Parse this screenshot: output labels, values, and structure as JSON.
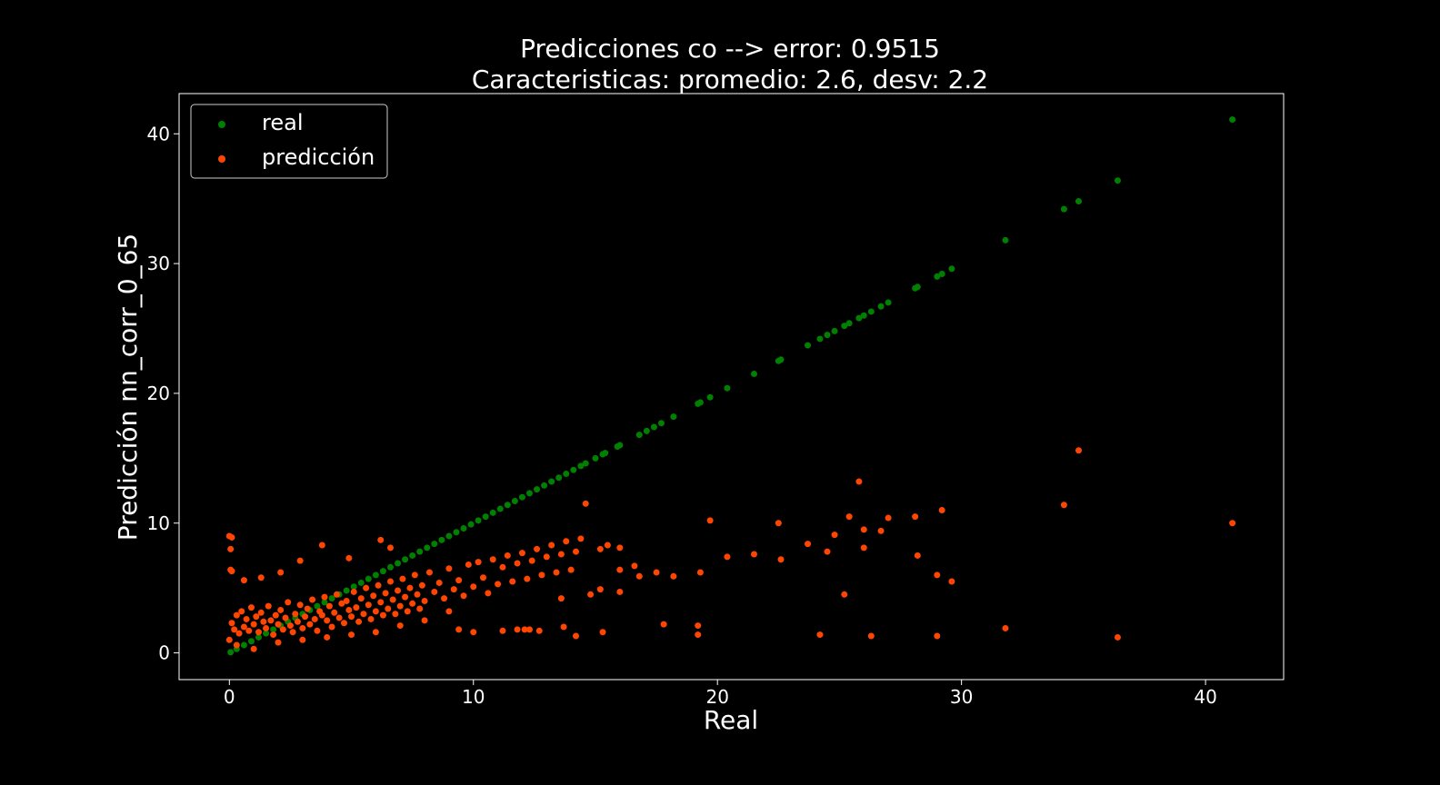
{
  "chart_data": {
    "type": "scatter",
    "title": "Predicciones co --> error: 0.9515",
    "subtitle": "Caracteristicas: promedio: 2.6, desv: 2.2",
    "xlabel": "Real",
    "ylabel": "Predicción nn_corr_0_65",
    "xlim": [
      -2.06,
      43.2
    ],
    "ylim": [
      -2.06,
      43.1
    ],
    "x_ticks": [
      0,
      10,
      20,
      30,
      40
    ],
    "y_ticks": [
      0,
      10,
      20,
      30,
      40
    ],
    "grid": false,
    "legend_position": "top-left",
    "series": [
      {
        "name": "real",
        "color": "#008000",
        "points": [
          [
            0.05,
            0.05
          ],
          [
            0.3,
            0.3
          ],
          [
            0.6,
            0.6
          ],
          [
            0.9,
            0.9
          ],
          [
            1.2,
            1.2
          ],
          [
            1.5,
            1.5
          ],
          [
            1.8,
            1.8
          ],
          [
            2.1,
            2.1
          ],
          [
            2.4,
            2.4
          ],
          [
            2.7,
            2.7
          ],
          [
            3.0,
            3.0
          ],
          [
            3.3,
            3.3
          ],
          [
            3.6,
            3.6
          ],
          [
            3.9,
            3.9
          ],
          [
            4.2,
            4.2
          ],
          [
            4.5,
            4.5
          ],
          [
            4.8,
            4.8
          ],
          [
            5.1,
            5.1
          ],
          [
            5.4,
            5.4
          ],
          [
            5.7,
            5.7
          ],
          [
            6.0,
            6.0
          ],
          [
            6.3,
            6.3
          ],
          [
            6.6,
            6.6
          ],
          [
            6.9,
            6.9
          ],
          [
            7.2,
            7.2
          ],
          [
            7.5,
            7.5
          ],
          [
            7.8,
            7.8
          ],
          [
            8.1,
            8.1
          ],
          [
            8.4,
            8.4
          ],
          [
            8.7,
            8.7
          ],
          [
            9.0,
            9.0
          ],
          [
            9.3,
            9.3
          ],
          [
            9.6,
            9.6
          ],
          [
            9.9,
            9.9
          ],
          [
            10.2,
            10.2
          ],
          [
            10.5,
            10.5
          ],
          [
            10.8,
            10.8
          ],
          [
            11.1,
            11.1
          ],
          [
            11.4,
            11.4
          ],
          [
            11.7,
            11.7
          ],
          [
            12.0,
            12.0
          ],
          [
            12.3,
            12.3
          ],
          [
            12.6,
            12.6
          ],
          [
            12.9,
            12.9
          ],
          [
            13.2,
            13.2
          ],
          [
            13.5,
            13.5
          ],
          [
            13.8,
            13.8
          ],
          [
            14.1,
            14.1
          ],
          [
            14.4,
            14.4
          ],
          [
            14.6,
            14.6
          ],
          [
            15.0,
            15.0
          ],
          [
            15.3,
            15.3
          ],
          [
            15.4,
            15.4
          ],
          [
            15.9,
            15.9
          ],
          [
            16.0,
            16.0
          ],
          [
            16.8,
            16.8
          ],
          [
            17.1,
            17.1
          ],
          [
            17.4,
            17.4
          ],
          [
            17.7,
            17.7
          ],
          [
            18.2,
            18.2
          ],
          [
            19.2,
            19.2
          ],
          [
            19.3,
            19.3
          ],
          [
            19.7,
            19.7
          ],
          [
            20.4,
            20.4
          ],
          [
            21.5,
            21.5
          ],
          [
            22.5,
            22.5
          ],
          [
            22.6,
            22.6
          ],
          [
            23.7,
            23.7
          ],
          [
            24.2,
            24.2
          ],
          [
            24.5,
            24.5
          ],
          [
            24.8,
            24.8
          ],
          [
            25.2,
            25.2
          ],
          [
            25.4,
            25.4
          ],
          [
            25.8,
            25.8
          ],
          [
            26.0,
            26.0
          ],
          [
            26.3,
            26.3
          ],
          [
            26.7,
            26.7
          ],
          [
            27.0,
            27.0
          ],
          [
            28.1,
            28.1
          ],
          [
            28.2,
            28.2
          ],
          [
            29.0,
            29.0
          ],
          [
            29.2,
            29.2
          ],
          [
            29.6,
            29.6
          ],
          [
            31.8,
            31.8
          ],
          [
            34.2,
            34.2
          ],
          [
            34.8,
            34.8
          ],
          [
            36.4,
            36.4
          ],
          [
            41.1,
            41.1
          ]
        ]
      },
      {
        "name": "predicción",
        "color": "#ff4500",
        "points": [
          [
            0.1,
            2.3
          ],
          [
            0.2,
            1.8
          ],
          [
            0.3,
            2.9
          ],
          [
            0.4,
            1.5
          ],
          [
            0.5,
            3.2
          ],
          [
            0.6,
            2.0
          ],
          [
            0.7,
            2.6
          ],
          [
            0.8,
            1.7
          ],
          [
            0.9,
            3.5
          ],
          [
            1.0,
            2.2
          ],
          [
            1.1,
            2.8
          ],
          [
            1.2,
            1.6
          ],
          [
            1.3,
            3.1
          ],
          [
            1.4,
            2.4
          ],
          [
            1.5,
            1.9
          ],
          [
            1.6,
            3.6
          ],
          [
            1.7,
            2.5
          ],
          [
            1.8,
            1.4
          ],
          [
            1.9,
            2.9
          ],
          [
            2.0,
            2.2
          ],
          [
            2.1,
            3.3
          ],
          [
            2.2,
            1.8
          ],
          [
            2.3,
            2.7
          ],
          [
            2.4,
            3.9
          ],
          [
            2.5,
            2.1
          ],
          [
            2.6,
            1.6
          ],
          [
            2.7,
            3.0
          ],
          [
            2.8,
            2.4
          ],
          [
            2.9,
            3.7
          ],
          [
            3.0,
            1.9
          ],
          [
            3.1,
            2.8
          ],
          [
            3.2,
            3.4
          ],
          [
            3.3,
            2.2
          ],
          [
            3.4,
            4.1
          ],
          [
            3.5,
            2.6
          ],
          [
            3.6,
            1.7
          ],
          [
            3.7,
            3.2
          ],
          [
            3.8,
            2.9
          ],
          [
            3.9,
            4.3
          ],
          [
            4.0,
            2.5
          ],
          [
            4.1,
            3.6
          ],
          [
            4.2,
            2.0
          ],
          [
            4.3,
            3.1
          ],
          [
            4.4,
            4.5
          ],
          [
            4.5,
            2.7
          ],
          [
            4.6,
            3.8
          ],
          [
            4.7,
            2.3
          ],
          [
            4.8,
            4.0
          ],
          [
            4.9,
            3.3
          ],
          [
            5.0,
            2.8
          ],
          [
            5.1,
            4.7
          ],
          [
            5.2,
            3.5
          ],
          [
            5.3,
            2.4
          ],
          [
            5.4,
            4.2
          ],
          [
            5.5,
            3.0
          ],
          [
            5.6,
            5.0
          ],
          [
            5.7,
            3.7
          ],
          [
            5.8,
            2.6
          ],
          [
            5.9,
            4.4
          ],
          [
            6.0,
            3.2
          ],
          [
            6.1,
            5.2
          ],
          [
            6.2,
            3.9
          ],
          [
            6.3,
            2.9
          ],
          [
            6.4,
            4.6
          ],
          [
            6.5,
            3.4
          ],
          [
            6.6,
            5.5
          ],
          [
            6.7,
            4.1
          ],
          [
            6.8,
            3.0
          ],
          [
            6.9,
            4.8
          ],
          [
            7.0,
            3.6
          ],
          [
            7.1,
            5.7
          ],
          [
            7.2,
            4.3
          ],
          [
            7.3,
            3.2
          ],
          [
            7.4,
            5.0
          ],
          [
            7.5,
            3.8
          ],
          [
            7.6,
            6.0
          ],
          [
            7.7,
            4.5
          ],
          [
            7.8,
            3.4
          ],
          [
            7.9,
            5.2
          ],
          [
            8.0,
            4.0
          ],
          [
            8.2,
            6.2
          ],
          [
            8.4,
            4.7
          ],
          [
            8.6,
            5.4
          ],
          [
            8.8,
            4.2
          ],
          [
            9.0,
            6.5
          ],
          [
            9.2,
            4.9
          ],
          [
            9.4,
            5.6
          ],
          [
            9.6,
            4.4
          ],
          [
            9.8,
            6.8
          ],
          [
            10.0,
            5.1
          ],
          [
            10.2,
            7.0
          ],
          [
            10.4,
            5.8
          ],
          [
            10.6,
            4.6
          ],
          [
            10.8,
            7.2
          ],
          [
            11.0,
            5.3
          ],
          [
            11.2,
            6.6
          ],
          [
            11.4,
            7.5
          ],
          [
            11.6,
            5.5
          ],
          [
            11.8,
            6.9
          ],
          [
            12.0,
            7.7
          ],
          [
            12.2,
            5.7
          ],
          [
            12.4,
            7.1
          ],
          [
            12.6,
            8.0
          ],
          [
            12.8,
            6.0
          ],
          [
            13.0,
            7.4
          ],
          [
            13.2,
            8.3
          ],
          [
            13.4,
            6.2
          ],
          [
            13.6,
            7.6
          ],
          [
            13.8,
            8.6
          ],
          [
            14.0,
            6.4
          ],
          [
            14.2,
            7.8
          ],
          [
            14.4,
            8.8
          ],
          [
            14.6,
            11.5
          ],
          [
            15.2,
            8.0
          ],
          [
            15.5,
            8.3
          ],
          [
            16.0,
            8.1
          ],
          [
            16.0,
            6.4
          ],
          [
            16.0,
            4.7
          ],
          [
            15.2,
            4.9
          ],
          [
            14.8,
            4.5
          ],
          [
            13.6,
            4.2
          ],
          [
            11.8,
            1.8
          ],
          [
            11.2,
            1.7
          ],
          [
            12.1,
            1.8
          ],
          [
            12.3,
            1.8
          ],
          [
            12.7,
            1.7
          ],
          [
            13.7,
            2.0
          ],
          [
            14.2,
            1.3
          ],
          [
            15.3,
            1.6
          ],
          [
            10.0,
            1.6
          ],
          [
            9.4,
            1.8
          ],
          [
            0.0,
            9.0
          ],
          [
            0.1,
            8.9
          ],
          [
            0.05,
            8.0
          ],
          [
            0.05,
            6.4
          ],
          [
            0.1,
            6.3
          ],
          [
            0.6,
            5.6
          ],
          [
            1.3,
            5.8
          ],
          [
            2.1,
            6.2
          ],
          [
            2.9,
            7.1
          ],
          [
            3.8,
            8.3
          ],
          [
            4.9,
            7.3
          ],
          [
            6.2,
            8.7
          ],
          [
            6.6,
            8.1
          ],
          [
            0.0,
            1.0
          ],
          [
            0.3,
            0.6
          ],
          [
            1.0,
            0.3
          ],
          [
            2.0,
            0.8
          ],
          [
            3.0,
            1.0
          ],
          [
            4.0,
            1.2
          ],
          [
            5.0,
            1.4
          ],
          [
            6.0,
            1.6
          ],
          [
            7.0,
            2.1
          ],
          [
            8.0,
            2.5
          ],
          [
            9.0,
            3.2
          ],
          [
            16.6,
            6.7
          ],
          [
            16.8,
            5.9
          ],
          [
            17.5,
            6.2
          ],
          [
            18.2,
            5.9
          ],
          [
            17.8,
            2.2
          ],
          [
            19.2,
            2.1
          ],
          [
            19.2,
            1.4
          ],
          [
            19.3,
            6.2
          ],
          [
            19.7,
            10.2
          ],
          [
            20.4,
            7.4
          ],
          [
            21.5,
            7.6
          ],
          [
            22.5,
            10.0
          ],
          [
            22.6,
            7.2
          ],
          [
            23.7,
            8.4
          ],
          [
            24.2,
            1.4
          ],
          [
            24.5,
            7.8
          ],
          [
            24.8,
            9.1
          ],
          [
            25.2,
            4.5
          ],
          [
            25.4,
            10.5
          ],
          [
            25.8,
            13.2
          ],
          [
            26.0,
            9.5
          ],
          [
            26.0,
            8.1
          ],
          [
            26.3,
            1.3
          ],
          [
            26.7,
            9.4
          ],
          [
            27.0,
            10.4
          ],
          [
            28.1,
            10.5
          ],
          [
            28.2,
            7.5
          ],
          [
            29.0,
            6.0
          ],
          [
            29.0,
            1.3
          ],
          [
            29.2,
            11.0
          ],
          [
            29.6,
            5.5
          ],
          [
            31.8,
            1.9
          ],
          [
            34.2,
            11.4
          ],
          [
            34.8,
            15.6
          ],
          [
            36.4,
            1.2
          ],
          [
            41.1,
            10.0
          ]
        ]
      }
    ]
  }
}
